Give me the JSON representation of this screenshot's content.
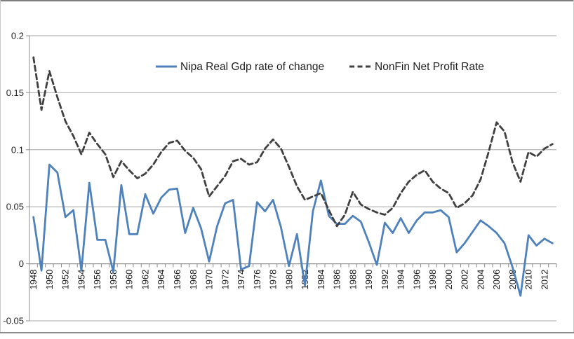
{
  "legend": {
    "items": [
      {
        "label": "Nipa Real Gdp rate of change",
        "color": "#4F81BD",
        "style": "solid"
      },
      {
        "label": "NonFin Net Profit Rate",
        "color": "#404040",
        "style": "dashed"
      }
    ]
  },
  "axes": {
    "y_ticks": [
      {
        "label": "0.2",
        "value": 0.2
      },
      {
        "label": "0.15",
        "value": 0.15
      },
      {
        "label": "0.1",
        "value": 0.1
      },
      {
        "label": "0.05",
        "value": 0.05
      },
      {
        "label": "0",
        "value": 0
      },
      {
        "label": "-0.05",
        "value": -0.05
      }
    ],
    "x_tick_years": [
      1948,
      1950,
      1952,
      1954,
      1956,
      1958,
      1960,
      1962,
      1964,
      1966,
      1968,
      1970,
      1972,
      1974,
      1976,
      1978,
      1980,
      1982,
      1984,
      1986,
      1988,
      1990,
      1992,
      1994,
      1996,
      1998,
      2000,
      2002,
      2004,
      2006,
      2008,
      2010,
      2012
    ]
  },
  "colors": {
    "gridline": "#A6A6A6",
    "axis": "#8C8C8C",
    "gdp_line": "#4F81BD",
    "profit_line": "#404040"
  },
  "chart_data": {
    "type": "line",
    "title": "",
    "xlabel": "",
    "ylabel": "",
    "ylim": [
      -0.05,
      0.2
    ],
    "y_tick_step": 0.05,
    "grid": "horizontal",
    "legend_position": "top-center",
    "x": [
      1948,
      1949,
      1950,
      1951,
      1952,
      1953,
      1954,
      1955,
      1956,
      1957,
      1958,
      1959,
      1960,
      1961,
      1962,
      1963,
      1964,
      1965,
      1966,
      1967,
      1968,
      1969,
      1970,
      1971,
      1972,
      1973,
      1974,
      1975,
      1976,
      1977,
      1978,
      1979,
      1980,
      1981,
      1982,
      1983,
      1984,
      1985,
      1986,
      1987,
      1988,
      1989,
      1990,
      1991,
      1992,
      1993,
      1994,
      1995,
      1996,
      1997,
      1998,
      1999,
      2000,
      2001,
      2002,
      2003,
      2004,
      2005,
      2006,
      2007,
      2008,
      2009,
      2010,
      2011,
      2012,
      2013
    ],
    "series": [
      {
        "name": "Nipa Real Gdp rate of change",
        "color": "#4F81BD",
        "dash": "solid",
        "values": [
          0.041,
          -0.006,
          0.087,
          0.08,
          0.041,
          0.047,
          -0.006,
          0.071,
          0.021,
          0.021,
          -0.007,
          0.069,
          0.026,
          0.026,
          0.061,
          0.044,
          0.058,
          0.065,
          0.066,
          0.027,
          0.049,
          0.031,
          0.002,
          0.033,
          0.053,
          0.056,
          -0.005,
          -0.002,
          0.054,
          0.046,
          0.056,
          0.032,
          -0.002,
          0.026,
          -0.019,
          0.046,
          0.073,
          0.042,
          0.035,
          0.035,
          0.042,
          0.037,
          0.019,
          -0.001,
          0.036,
          0.027,
          0.04,
          0.027,
          0.038,
          0.045,
          0.045,
          0.047,
          0.041,
          0.01,
          0.018,
          0.028,
          0.038,
          0.033,
          0.027,
          0.018,
          -0.003,
          -0.028,
          0.025,
          0.016,
          0.022,
          0.018
        ]
      },
      {
        "name": "NonFin Net Profit Rate",
        "color": "#404040",
        "dash": "dashed",
        "values": [
          0.181,
          0.135,
          0.169,
          0.146,
          0.125,
          0.112,
          0.096,
          0.115,
          0.105,
          0.096,
          0.076,
          0.09,
          0.082,
          0.075,
          0.079,
          0.087,
          0.098,
          0.106,
          0.108,
          0.099,
          0.093,
          0.083,
          0.059,
          0.068,
          0.077,
          0.09,
          0.092,
          0.087,
          0.089,
          0.101,
          0.109,
          0.101,
          0.085,
          0.068,
          0.056,
          0.059,
          0.062,
          0.047,
          0.033,
          0.043,
          0.063,
          0.052,
          0.048,
          0.045,
          0.043,
          0.049,
          0.062,
          0.072,
          0.078,
          0.082,
          0.072,
          0.066,
          0.062,
          0.049,
          0.053,
          0.06,
          0.074,
          0.098,
          0.124,
          0.116,
          0.089,
          0.072,
          0.098,
          0.094,
          0.101,
          0.105
        ]
      }
    ]
  }
}
